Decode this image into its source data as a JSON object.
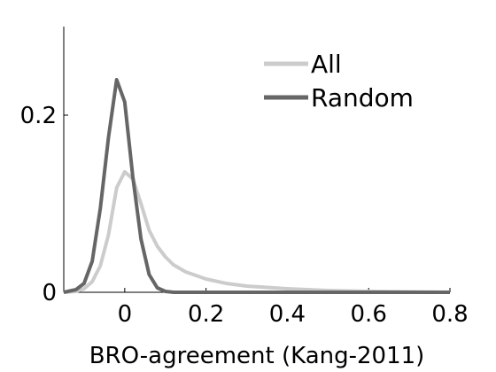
{
  "chart_data": {
    "type": "line",
    "xlabel": "BRO-agreement (Kang-2011)",
    "ylabel": "",
    "xlim": [
      -0.15,
      0.8
    ],
    "ylim": [
      0,
      0.3
    ],
    "x_ticks": [
      {
        "value": 0,
        "label": "0"
      },
      {
        "value": 0.2,
        "label": "0.2"
      },
      {
        "value": 0.4,
        "label": "0.4"
      },
      {
        "value": 0.6,
        "label": "0.6"
      },
      {
        "value": 0.8,
        "label": "0.8"
      }
    ],
    "y_ticks": [
      {
        "value": 0,
        "label": "0"
      },
      {
        "value": 0.2,
        "label": "0.2"
      }
    ],
    "grid": false,
    "legend_position": "top-right",
    "series": [
      {
        "name": "All",
        "color": "#cccccc",
        "x": [
          -0.15,
          -0.12,
          -0.1,
          -0.08,
          -0.06,
          -0.04,
          -0.02,
          0.0,
          0.02,
          0.04,
          0.06,
          0.08,
          0.1,
          0.12,
          0.15,
          0.2,
          0.25,
          0.3,
          0.4,
          0.5,
          0.6,
          0.7,
          0.8
        ],
        "y": [
          0.0,
          0.001,
          0.004,
          0.012,
          0.03,
          0.065,
          0.118,
          0.136,
          0.128,
          0.1,
          0.07,
          0.052,
          0.04,
          0.031,
          0.023,
          0.015,
          0.01,
          0.007,
          0.004,
          0.002,
          0.001,
          0.0005,
          0.0
        ]
      },
      {
        "name": "Random",
        "color": "#666666",
        "x": [
          -0.15,
          -0.12,
          -0.1,
          -0.08,
          -0.06,
          -0.04,
          -0.02,
          0.0,
          0.02,
          0.04,
          0.06,
          0.08,
          0.1,
          0.12,
          0.15,
          0.2,
          0.8
        ],
        "y": [
          0.0,
          0.003,
          0.01,
          0.035,
          0.095,
          0.175,
          0.24,
          0.215,
          0.13,
          0.06,
          0.02,
          0.005,
          0.001,
          0.0,
          0.0,
          0.0,
          0.0
        ]
      }
    ]
  }
}
